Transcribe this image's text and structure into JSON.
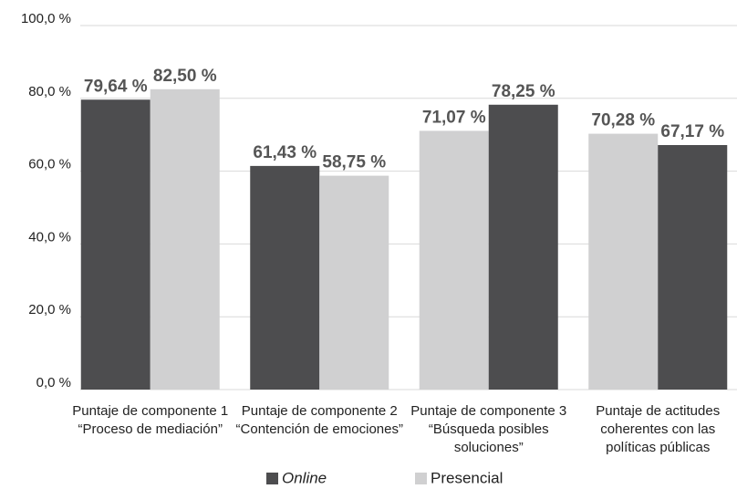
{
  "chart_data": {
    "type": "bar",
    "categories": [
      [
        "Puntaje de componente 1",
        "“Proceso de mediación”"
      ],
      [
        "Puntaje de componente 2",
        "“Contención de emociones”"
      ],
      [
        "Puntaje de componente 3",
        "“Búsqueda posibles",
        "soluciones”"
      ],
      [
        "Puntaje de actitudes",
        "coherentes con las",
        "políticas públicas"
      ]
    ],
    "series": [
      {
        "name": "Online",
        "color": "#4d4d4f",
        "values": [
          79.64,
          61.43,
          78.25,
          67.17
        ],
        "value_labels": [
          "79,64 %",
          "61,43 %",
          "78,25 %",
          "67,17 %"
        ]
      },
      {
        "name": "Presencial",
        "color": "#d0d0d1",
        "values": [
          82.5,
          58.75,
          71.07,
          70.28
        ],
        "value_labels": [
          "82,50 %",
          "58,75 %",
          "71,07 %",
          "70,28 %"
        ]
      }
    ],
    "order": [
      [
        0,
        1
      ],
      [
        0,
        1
      ],
      [
        1,
        0
      ],
      [
        1,
        0
      ]
    ],
    "ylim": [
      0,
      100
    ],
    "yticks": [
      {
        "value": 0,
        "label": "0,0 %"
      },
      {
        "value": 20,
        "label": "20,0 %"
      },
      {
        "value": 40,
        "label": "40,0 %"
      },
      {
        "value": 60,
        "label": "60,0 %"
      },
      {
        "value": 80,
        "label": "80,0 %"
      },
      {
        "value": 100,
        "label": "100,0 %"
      }
    ],
    "grid": true
  }
}
